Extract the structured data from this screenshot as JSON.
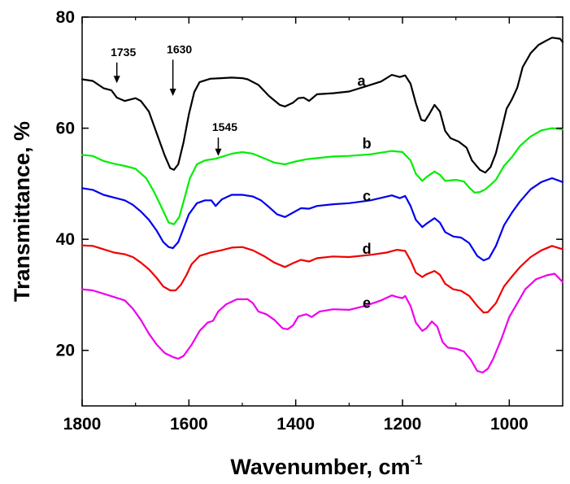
{
  "chart_data": {
    "type": "line",
    "xlabel": "Wavenumber, cm",
    "xlabel_superscript": "-1",
    "ylabel": "Transmittance, %",
    "xlim": [
      1800,
      900
    ],
    "ylim": [
      10,
      80
    ],
    "x_reversed": true,
    "grid": false,
    "xticks": [
      1800,
      1600,
      1400,
      1200,
      1000
    ],
    "yticks": [
      20,
      40,
      60,
      80
    ],
    "annotations": [
      {
        "text": "1735",
        "x": 1735,
        "y_arrow_end": 68.1
      },
      {
        "text": "1630",
        "x": 1630,
        "y_arrow_end": 65.8
      },
      {
        "text": "1545",
        "x": 1545,
        "y_arrow_end": 55.0
      }
    ],
    "series": [
      {
        "name": "a",
        "color": "#000000",
        "label_at": [
          1350,
          68.5
        ],
        "points": [
          [
            1800,
            68.8
          ],
          [
            1780,
            68.5
          ],
          [
            1760,
            67.2
          ],
          [
            1745,
            66.8
          ],
          [
            1735,
            65.5
          ],
          [
            1720,
            64.9
          ],
          [
            1700,
            65.4
          ],
          [
            1690,
            64.9
          ],
          [
            1675,
            63
          ],
          [
            1660,
            59
          ],
          [
            1645,
            55
          ],
          [
            1635,
            52.8
          ],
          [
            1628,
            52.5
          ],
          [
            1620,
            53.5
          ],
          [
            1610,
            57.5
          ],
          [
            1600,
            62.5
          ],
          [
            1590,
            66.5
          ],
          [
            1580,
            68.3
          ],
          [
            1560,
            68.9
          ],
          [
            1540,
            69
          ],
          [
            1520,
            69.1
          ],
          [
            1500,
            69
          ],
          [
            1490,
            68.8
          ],
          [
            1470,
            67.8
          ],
          [
            1450,
            65.8
          ],
          [
            1430,
            64.2
          ],
          [
            1420,
            63.9
          ],
          [
            1405,
            64.6
          ],
          [
            1395,
            65.4
          ],
          [
            1385,
            65.5
          ],
          [
            1375,
            64.9
          ],
          [
            1360,
            66.1
          ],
          [
            1330,
            66.3
          ],
          [
            1300,
            66.6
          ],
          [
            1270,
            67.5
          ],
          [
            1240,
            68.4
          ],
          [
            1220,
            69.6
          ],
          [
            1205,
            69.2
          ],
          [
            1195,
            69.5
          ],
          [
            1185,
            68
          ],
          [
            1175,
            64.5
          ],
          [
            1165,
            61.5
          ],
          [
            1158,
            61.3
          ],
          [
            1150,
            62.5
          ],
          [
            1140,
            64.2
          ],
          [
            1130,
            63
          ],
          [
            1120,
            59.5
          ],
          [
            1110,
            58.2
          ],
          [
            1095,
            57.6
          ],
          [
            1080,
            56.5
          ],
          [
            1070,
            54.2
          ],
          [
            1055,
            52.5
          ],
          [
            1045,
            52
          ],
          [
            1035,
            53
          ],
          [
            1025,
            55.5
          ],
          [
            1015,
            59.5
          ],
          [
            1005,
            63.5
          ],
          [
            995,
            65.2
          ],
          [
            985,
            67.3
          ],
          [
            975,
            71
          ],
          [
            960,
            73.5
          ],
          [
            945,
            75
          ],
          [
            930,
            75.8
          ],
          [
            920,
            76.3
          ],
          [
            905,
            76.1
          ],
          [
            900,
            75.5
          ]
        ]
      },
      {
        "name": "b",
        "color": "#00ee00",
        "label_at": [
          1340,
          57.2
        ],
        "points": [
          [
            1800,
            55.2
          ],
          [
            1780,
            55
          ],
          [
            1760,
            54.1
          ],
          [
            1740,
            53.6
          ],
          [
            1720,
            53.2
          ],
          [
            1700,
            52.7
          ],
          [
            1680,
            51
          ],
          [
            1665,
            48.5
          ],
          [
            1650,
            45.5
          ],
          [
            1638,
            43
          ],
          [
            1628,
            42.7
          ],
          [
            1618,
            44
          ],
          [
            1608,
            47.5
          ],
          [
            1598,
            51
          ],
          [
            1585,
            53.5
          ],
          [
            1570,
            54.2
          ],
          [
            1550,
            54.5
          ],
          [
            1540,
            54.8
          ],
          [
            1520,
            55.4
          ],
          [
            1500,
            55.7
          ],
          [
            1480,
            55.4
          ],
          [
            1460,
            54.6
          ],
          [
            1440,
            53.8
          ],
          [
            1420,
            53.5
          ],
          [
            1400,
            54
          ],
          [
            1380,
            54.4
          ],
          [
            1360,
            54.6
          ],
          [
            1330,
            54.9
          ],
          [
            1300,
            55
          ],
          [
            1260,
            55.3
          ],
          [
            1220,
            55.9
          ],
          [
            1200,
            55.7
          ],
          [
            1185,
            54.2
          ],
          [
            1175,
            51.8
          ],
          [
            1163,
            50.5
          ],
          [
            1155,
            51.2
          ],
          [
            1140,
            52.2
          ],
          [
            1130,
            51.6
          ],
          [
            1120,
            50.5
          ],
          [
            1100,
            50.7
          ],
          [
            1085,
            50.4
          ],
          [
            1075,
            49.3
          ],
          [
            1065,
            48.4
          ],
          [
            1055,
            48.5
          ],
          [
            1045,
            49
          ],
          [
            1035,
            49.8
          ],
          [
            1025,
            50.7
          ],
          [
            1010,
            53.2
          ],
          [
            995,
            54.8
          ],
          [
            980,
            56.8
          ],
          [
            960,
            58.5
          ],
          [
            940,
            59.6
          ],
          [
            920,
            60
          ],
          [
            900,
            59.8
          ]
        ]
      },
      {
        "name": "c",
        "color": "#0000ee",
        "label_at": [
          1340,
          47.8
        ],
        "points": [
          [
            1800,
            49.2
          ],
          [
            1780,
            48.9
          ],
          [
            1760,
            48
          ],
          [
            1740,
            47.5
          ],
          [
            1720,
            47
          ],
          [
            1705,
            46.2
          ],
          [
            1690,
            45
          ],
          [
            1675,
            43.5
          ],
          [
            1660,
            41.5
          ],
          [
            1648,
            39.5
          ],
          [
            1638,
            38.6
          ],
          [
            1630,
            38.4
          ],
          [
            1620,
            39.5
          ],
          [
            1610,
            42
          ],
          [
            1600,
            44.5
          ],
          [
            1585,
            46.5
          ],
          [
            1570,
            47
          ],
          [
            1558,
            47
          ],
          [
            1550,
            46
          ],
          [
            1545,
            46.5
          ],
          [
            1538,
            47.2
          ],
          [
            1520,
            48
          ],
          [
            1500,
            48
          ],
          [
            1480,
            47.7
          ],
          [
            1465,
            47
          ],
          [
            1450,
            45.8
          ],
          [
            1435,
            44.5
          ],
          [
            1420,
            44
          ],
          [
            1405,
            44.8
          ],
          [
            1390,
            45.6
          ],
          [
            1375,
            45.5
          ],
          [
            1360,
            46
          ],
          [
            1330,
            46.3
          ],
          [
            1300,
            46.5
          ],
          [
            1260,
            47
          ],
          [
            1220,
            47.9
          ],
          [
            1205,
            47.4
          ],
          [
            1195,
            47.8
          ],
          [
            1185,
            46
          ],
          [
            1175,
            43.5
          ],
          [
            1163,
            42.2
          ],
          [
            1155,
            42.8
          ],
          [
            1140,
            43.8
          ],
          [
            1130,
            43
          ],
          [
            1120,
            41.3
          ],
          [
            1105,
            40.5
          ],
          [
            1090,
            40.3
          ],
          [
            1075,
            39.3
          ],
          [
            1060,
            37
          ],
          [
            1048,
            36.2
          ],
          [
            1038,
            36.6
          ],
          [
            1025,
            38.8
          ],
          [
            1010,
            42.5
          ],
          [
            995,
            44.8
          ],
          [
            980,
            46.8
          ],
          [
            960,
            49
          ],
          [
            940,
            50.3
          ],
          [
            920,
            51
          ],
          [
            900,
            50.3
          ]
        ]
      },
      {
        "name": "d",
        "color": "#ee0000",
        "label_at": [
          1340,
          38.3
        ],
        "points": [
          [
            1800,
            38.9
          ],
          [
            1780,
            38.8
          ],
          [
            1760,
            38.2
          ],
          [
            1740,
            37.6
          ],
          [
            1720,
            37.3
          ],
          [
            1705,
            36.8
          ],
          [
            1690,
            35.8
          ],
          [
            1675,
            34.6
          ],
          [
            1660,
            33
          ],
          [
            1648,
            31.5
          ],
          [
            1635,
            30.8
          ],
          [
            1625,
            30.8
          ],
          [
            1615,
            31.8
          ],
          [
            1605,
            33.5
          ],
          [
            1595,
            35.5
          ],
          [
            1580,
            37
          ],
          [
            1560,
            37.6
          ],
          [
            1540,
            38
          ],
          [
            1520,
            38.5
          ],
          [
            1500,
            38.6
          ],
          [
            1480,
            38
          ],
          [
            1460,
            37
          ],
          [
            1440,
            35.8
          ],
          [
            1420,
            35
          ],
          [
            1405,
            35.7
          ],
          [
            1390,
            36.3
          ],
          [
            1375,
            36
          ],
          [
            1360,
            36.6
          ],
          [
            1330,
            36.9
          ],
          [
            1300,
            36.8
          ],
          [
            1260,
            37.2
          ],
          [
            1230,
            37.6
          ],
          [
            1210,
            38.1
          ],
          [
            1195,
            37.9
          ],
          [
            1185,
            36.2
          ],
          [
            1175,
            34
          ],
          [
            1163,
            33.2
          ],
          [
            1155,
            33.7
          ],
          [
            1140,
            34.3
          ],
          [
            1130,
            33.6
          ],
          [
            1120,
            32
          ],
          [
            1105,
            31
          ],
          [
            1090,
            30.7
          ],
          [
            1075,
            29.8
          ],
          [
            1060,
            28
          ],
          [
            1048,
            26.8
          ],
          [
            1040,
            26.9
          ],
          [
            1025,
            28.5
          ],
          [
            1010,
            31.5
          ],
          [
            995,
            33.3
          ],
          [
            980,
            35
          ],
          [
            960,
            36.8
          ],
          [
            940,
            38
          ],
          [
            920,
            38.8
          ],
          [
            900,
            38.2
          ]
        ]
      },
      {
        "name": "e",
        "color": "#ee00ee",
        "label_at": [
          1340,
          28.5
        ],
        "points": [
          [
            1800,
            31
          ],
          [
            1780,
            30.8
          ],
          [
            1760,
            30.2
          ],
          [
            1740,
            29.6
          ],
          [
            1720,
            29
          ],
          [
            1705,
            27.5
          ],
          [
            1690,
            25.5
          ],
          [
            1675,
            23
          ],
          [
            1660,
            21
          ],
          [
            1645,
            19.5
          ],
          [
            1630,
            18.8
          ],
          [
            1620,
            18.5
          ],
          [
            1610,
            19
          ],
          [
            1595,
            21
          ],
          [
            1580,
            23.5
          ],
          [
            1565,
            25
          ],
          [
            1555,
            25.3
          ],
          [
            1545,
            27
          ],
          [
            1530,
            28.3
          ],
          [
            1510,
            29.2
          ],
          [
            1490,
            29.2
          ],
          [
            1480,
            28.5
          ],
          [
            1470,
            27
          ],
          [
            1455,
            26.5
          ],
          [
            1440,
            25.5
          ],
          [
            1425,
            24
          ],
          [
            1415,
            23.8
          ],
          [
            1405,
            24.5
          ],
          [
            1395,
            26.1
          ],
          [
            1380,
            26.5
          ],
          [
            1370,
            26
          ],
          [
            1355,
            27
          ],
          [
            1330,
            27.4
          ],
          [
            1300,
            27.3
          ],
          [
            1270,
            28
          ],
          [
            1240,
            29
          ],
          [
            1220,
            29.9
          ],
          [
            1210,
            29.6
          ],
          [
            1200,
            29.4
          ],
          [
            1195,
            29.8
          ],
          [
            1185,
            28
          ],
          [
            1175,
            25
          ],
          [
            1163,
            23.5
          ],
          [
            1155,
            24
          ],
          [
            1145,
            25.2
          ],
          [
            1135,
            24.3
          ],
          [
            1125,
            21.5
          ],
          [
            1115,
            20.5
          ],
          [
            1100,
            20.3
          ],
          [
            1085,
            19.8
          ],
          [
            1072,
            18.3
          ],
          [
            1060,
            16.3
          ],
          [
            1050,
            16
          ],
          [
            1040,
            16.7
          ],
          [
            1030,
            18.5
          ],
          [
            1015,
            22
          ],
          [
            1000,
            26
          ],
          [
            985,
            28.5
          ],
          [
            970,
            31
          ],
          [
            950,
            32.8
          ],
          [
            930,
            33.5
          ],
          [
            915,
            33.8
          ],
          [
            900,
            32.3
          ]
        ]
      }
    ]
  }
}
